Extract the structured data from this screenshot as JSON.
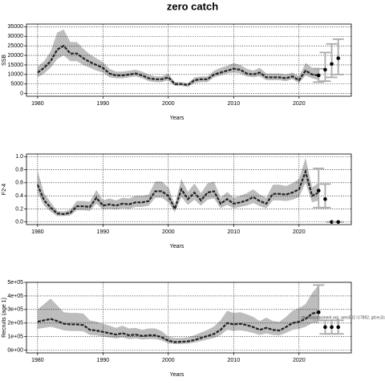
{
  "chart_data": [
    {
      "type": "line",
      "title": "zero catch",
      "ylabel": "SSB",
      "xlabel": "Years",
      "x": [
        1980,
        1981,
        1982,
        1983,
        1984,
        1985,
        1986,
        1987,
        1988,
        1989,
        1990,
        1991,
        1992,
        1993,
        1994,
        1995,
        1996,
        1997,
        1998,
        1999,
        2000,
        2001,
        2002,
        2003,
        2004,
        2005,
        2006,
        2007,
        2008,
        2009,
        2010,
        2011,
        2012,
        2013,
        2014,
        2015,
        2016,
        2017,
        2018,
        2019,
        2020,
        2021,
        2022,
        2023
      ],
      "values": [
        11000,
        13500,
        17000,
        23000,
        25000,
        21000,
        21000,
        18500,
        16500,
        15000,
        13500,
        10500,
        9500,
        9500,
        10000,
        10500,
        9500,
        8000,
        7500,
        7500,
        8500,
        5000,
        5000,
        4500,
        7000,
        7500,
        7500,
        10000,
        11000,
        12000,
        13000,
        12500,
        10500,
        10000,
        11000,
        8500,
        8500,
        8500,
        8000,
        9000,
        7000,
        12000,
        10000,
        9500
      ],
      "lower": [
        8500,
        10500,
        13500,
        18000,
        20000,
        17000,
        17000,
        15000,
        13500,
        12000,
        11000,
        8500,
        8000,
        8000,
        8500,
        9000,
        8000,
        6500,
        6000,
        6000,
        7000,
        4000,
        4000,
        3500,
        5500,
        6000,
        6000,
        8500,
        9500,
        10500,
        11000,
        10500,
        9000,
        8500,
        9000,
        7000,
        7000,
        7000,
        6500,
        7500,
        5500,
        9500,
        8000,
        7000
      ],
      "upper": [
        14000,
        17000,
        22000,
        32000,
        33500,
        27000,
        27000,
        23500,
        20500,
        18500,
        16500,
        13000,
        11500,
        11500,
        12000,
        12500,
        11500,
        10000,
        9000,
        9000,
        10500,
        6000,
        6000,
        5500,
        8500,
        9000,
        9000,
        12000,
        13500,
        14500,
        16000,
        15000,
        13000,
        12000,
        13500,
        10500,
        10500,
        10500,
        10000,
        11000,
        9000,
        16000,
        13500,
        13500
      ],
      "forecast": {
        "x": [
          2023,
          2024,
          2025,
          2026
        ],
        "values": [
          9500,
          12500,
          15500,
          18500
        ],
        "lower": [
          6000,
          6500,
          8500,
          10000
        ],
        "upper": [
          13000,
          21500,
          26000,
          28500
        ]
      },
      "xlim": [
        1978.3,
        2028
      ],
      "xticks": [
        1980,
        1990,
        2000,
        2010,
        2020
      ],
      "ylim": [
        -1400,
        36400
      ],
      "yticks": [
        0,
        5000,
        10000,
        15000,
        20000,
        25000,
        30000,
        35000
      ],
      "color": "#222222",
      "band_color": "#bdbdbd",
      "error_color": "#aaaaaa",
      "grid": true
    },
    {
      "type": "line",
      "ylabel": "F2-4",
      "xlabel": "Years",
      "x": [
        1980,
        1981,
        1982,
        1983,
        1984,
        1985,
        1986,
        1987,
        1988,
        1989,
        1990,
        1991,
        1992,
        1993,
        1994,
        1995,
        1996,
        1997,
        1998,
        1999,
        2000,
        2001,
        2002,
        2003,
        2004,
        2005,
        2006,
        2007,
        2008,
        2009,
        2010,
        2011,
        2012,
        2013,
        2014,
        2015,
        2016,
        2017,
        2018,
        2019,
        2020,
        2021,
        2022,
        2023
      ],
      "values": [
        0.57,
        0.33,
        0.22,
        0.13,
        0.12,
        0.14,
        0.24,
        0.24,
        0.23,
        0.37,
        0.25,
        0.27,
        0.25,
        0.28,
        0.27,
        0.3,
        0.3,
        0.32,
        0.47,
        0.47,
        0.4,
        0.2,
        0.5,
        0.35,
        0.45,
        0.33,
        0.45,
        0.47,
        0.28,
        0.35,
        0.28,
        0.3,
        0.33,
        0.38,
        0.32,
        0.28,
        0.43,
        0.43,
        0.42,
        0.45,
        0.5,
        0.77,
        0.4,
        0.45
      ],
      "lower": [
        0.45,
        0.25,
        0.16,
        0.09,
        0.09,
        0.1,
        0.18,
        0.18,
        0.17,
        0.28,
        0.19,
        0.2,
        0.19,
        0.21,
        0.2,
        0.23,
        0.23,
        0.25,
        0.37,
        0.37,
        0.3,
        0.15,
        0.38,
        0.26,
        0.34,
        0.25,
        0.34,
        0.36,
        0.21,
        0.26,
        0.21,
        0.23,
        0.25,
        0.29,
        0.24,
        0.21,
        0.33,
        0.33,
        0.32,
        0.34,
        0.38,
        0.6,
        0.3,
        0.33
      ],
      "upper": [
        0.78,
        0.44,
        0.3,
        0.17,
        0.16,
        0.19,
        0.32,
        0.32,
        0.31,
        0.49,
        0.33,
        0.36,
        0.33,
        0.37,
        0.36,
        0.4,
        0.4,
        0.42,
        0.62,
        0.62,
        0.53,
        0.27,
        0.66,
        0.46,
        0.59,
        0.44,
        0.59,
        0.62,
        0.37,
        0.46,
        0.37,
        0.4,
        0.44,
        0.5,
        0.42,
        0.37,
        0.57,
        0.57,
        0.55,
        0.59,
        0.66,
        0.98,
        0.53,
        0.6
      ],
      "forecast": {
        "x": [
          2023,
          2024,
          2025,
          2026
        ],
        "values": [
          0.48,
          0.35,
          0,
          0
        ],
        "lower": [
          0.22,
          0.22,
          0,
          0
        ],
        "upper": [
          0.82,
          0.58,
          0,
          0
        ]
      },
      "xlim": [
        1978.3,
        2028
      ],
      "xticks": [
        1980,
        1990,
        2000,
        2010,
        2020
      ],
      "ylim": [
        -0.04,
        1.04
      ],
      "yticks": [
        {
          "value": 0,
          "label": "0.0"
        },
        0.2,
        0.4,
        0.6,
        0.8,
        {
          "value": 1,
          "label": "1.0"
        }
      ],
      "color": "#222222",
      "band_color": "#bdbdbd",
      "error_color": "#aaaaaa",
      "grid": true
    },
    {
      "type": "line",
      "ylabel": "Recruits (age 1)",
      "xlabel": "Years",
      "annotation": "stockassessment.org, ares502 r17892, git:ec2c",
      "x": [
        1980,
        1981,
        1982,
        1983,
        1984,
        1985,
        1986,
        1987,
        1988,
        1989,
        1990,
        1991,
        1992,
        1993,
        1994,
        1995,
        1996,
        1997,
        1998,
        1999,
        2000,
        2001,
        2002,
        2003,
        2004,
        2005,
        2006,
        2007,
        2008,
        2009,
        2010,
        2011,
        2012,
        2013,
        2014,
        2015,
        2016,
        2017,
        2018,
        2019,
        2020,
        2021,
        2022,
        2023
      ],
      "values": [
        210000,
        220000,
        230000,
        215000,
        195000,
        190000,
        190000,
        185000,
        150000,
        145000,
        135000,
        125000,
        115000,
        125000,
        110000,
        115000,
        105000,
        110000,
        110000,
        95000,
        70000,
        60000,
        62000,
        65000,
        75000,
        90000,
        105000,
        120000,
        150000,
        200000,
        190000,
        195000,
        185000,
        170000,
        150000,
        165000,
        150000,
        145000,
        170000,
        200000,
        210000,
        230000,
        270000,
        280000
      ],
      "lower": [
        157000,
        165000,
        172000,
        161000,
        146000,
        142000,
        142000,
        139000,
        112000,
        109000,
        101000,
        94000,
        86000,
        94000,
        82000,
        86000,
        79000,
        82000,
        82000,
        71000,
        52000,
        45000,
        46000,
        49000,
        56000,
        67000,
        79000,
        90000,
        112000,
        150000,
        142000,
        146000,
        139000,
        127000,
        112000,
        124000,
        112000,
        109000,
        127000,
        150000,
        157000,
        172000,
        200000,
        200000
      ],
      "upper": [
        300000,
        340000,
        380000,
        330000,
        280000,
        275000,
        275000,
        270000,
        220000,
        210000,
        195000,
        180000,
        165000,
        180000,
        160000,
        165000,
        150000,
        160000,
        160000,
        140000,
        100000,
        90000,
        90000,
        95000,
        110000,
        130000,
        150000,
        175000,
        220000,
        290000,
        275000,
        280000,
        265000,
        245000,
        215000,
        240000,
        215000,
        210000,
        245000,
        290000,
        310000,
        340000,
        420000,
        480000
      ],
      "forecast": {
        "x": [
          2023,
          2024,
          2025,
          2026
        ],
        "values": [
          280000,
          170000,
          170000,
          170000
        ],
        "lower": [
          220000,
          120000,
          120000,
          120000
        ],
        "upper": [
          480000,
          220000,
          220000,
          220000
        ]
      },
      "xlim": [
        1978.3,
        2028
      ],
      "xticks": [
        1980,
        1990,
        2000,
        2010,
        2020
      ],
      "ylim": [
        -20000,
        500000
      ],
      "yticks": [
        {
          "value": 0,
          "label": "0e+00"
        },
        {
          "value": 100000,
          "label": "1e+05"
        },
        {
          "value": 200000,
          "label": "2e+05"
        },
        {
          "value": 300000,
          "label": "3e+05"
        },
        {
          "value": 400000,
          "label": "4e+05"
        },
        {
          "value": 500000,
          "label": "5e+05"
        }
      ],
      "color": "#222222",
      "band_color": "#bdbdbd",
      "error_color": "#aaaaaa",
      "grid": true
    }
  ]
}
